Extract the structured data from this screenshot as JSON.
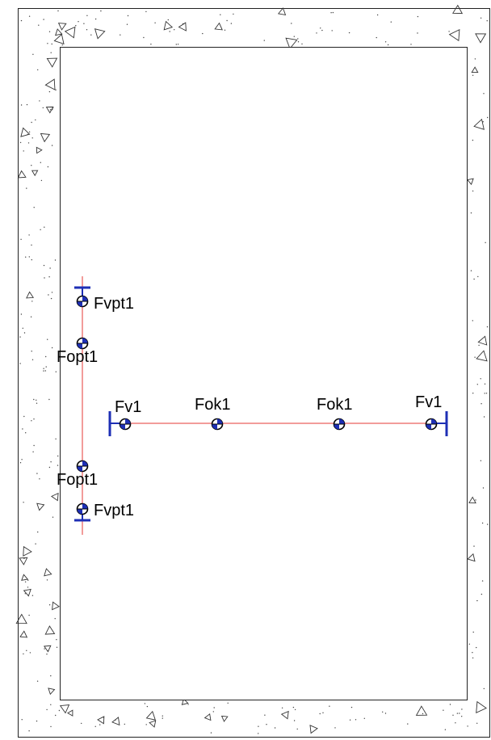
{
  "colors": {
    "background": "#ffffff",
    "outline": "#222222",
    "hatch": "#444444",
    "centerline": "#e53935",
    "bracket": "#1e2fb5",
    "marker_fill": "#1e2fb5",
    "marker_outline": "#000000"
  },
  "labels": {
    "vertical_top_end": "Fvpt1",
    "vertical_top_mid": "Fopt1",
    "vertical_bottom_mid": "Fopt1",
    "vertical_bottom_end": "Fvpt1",
    "horizontal_left_end": "Fv1",
    "horizontal_left_mid": "Fok1",
    "horizontal_right_mid": "Fok1",
    "horizontal_right_end": "Fv1"
  },
  "icons": {
    "point_marker": "circle-quadrant-marker-icon",
    "end_bracket": "i-beam-bracket-icon",
    "hatch_symbol": "triangle-hatch-icon"
  }
}
